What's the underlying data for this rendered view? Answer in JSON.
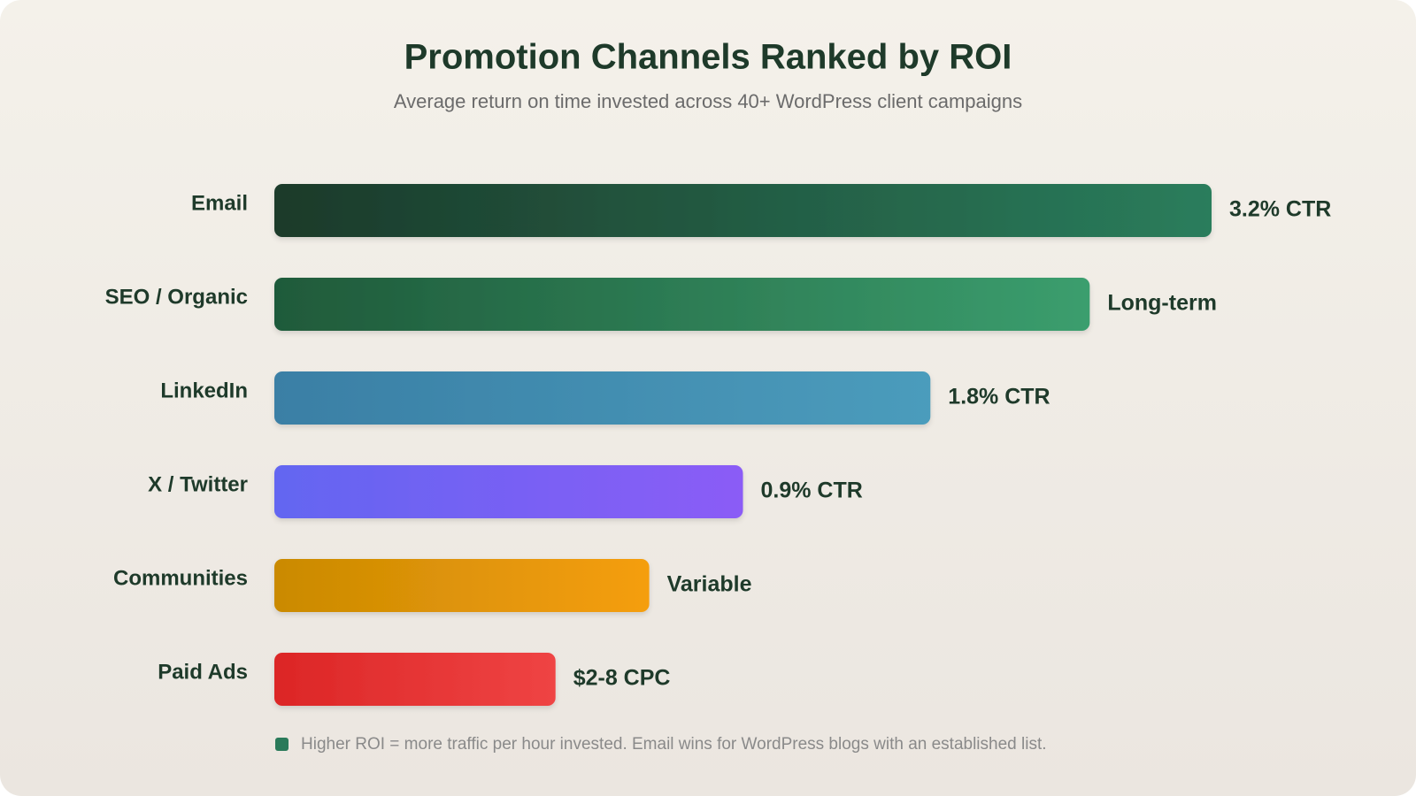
{
  "chart_data": {
    "type": "hbar",
    "title": "Promotion Channels Ranked by ROI",
    "subtitle": "Average return on time invested across 40+ WordPress client campaigns",
    "categories": [
      "Email",
      "SEO / Organic",
      "LinkedIn",
      "X / Twitter",
      "Communities",
      "Paid Ads"
    ],
    "values": [
      100,
      87,
      70,
      50,
      40,
      30
    ],
    "bar_notes": [
      "3.2% CTR",
      "Long-term",
      "1.8% CTR",
      "0.9% CTR",
      "Variable",
      "$2-8 CPC"
    ],
    "colors": [
      [
        "#1c3a2a",
        "#2a7d5c"
      ],
      [
        "#1f5a3a",
        "#3b9e6e"
      ],
      [
        "#3a7fa5",
        "#4b9cbc"
      ],
      [
        "#6366f1",
        "#8b5cf6"
      ],
      [
        "#ca8a04",
        "#f59e0b"
      ],
      [
        "#dc2626",
        "#ef4444"
      ]
    ],
    "xlim": [
      0,
      100
    ],
    "footnote": {
      "color": "#2a7a5a",
      "text": "Higher ROI = more traffic per hour invested. Email wins for WordPress blogs with an established list."
    }
  }
}
